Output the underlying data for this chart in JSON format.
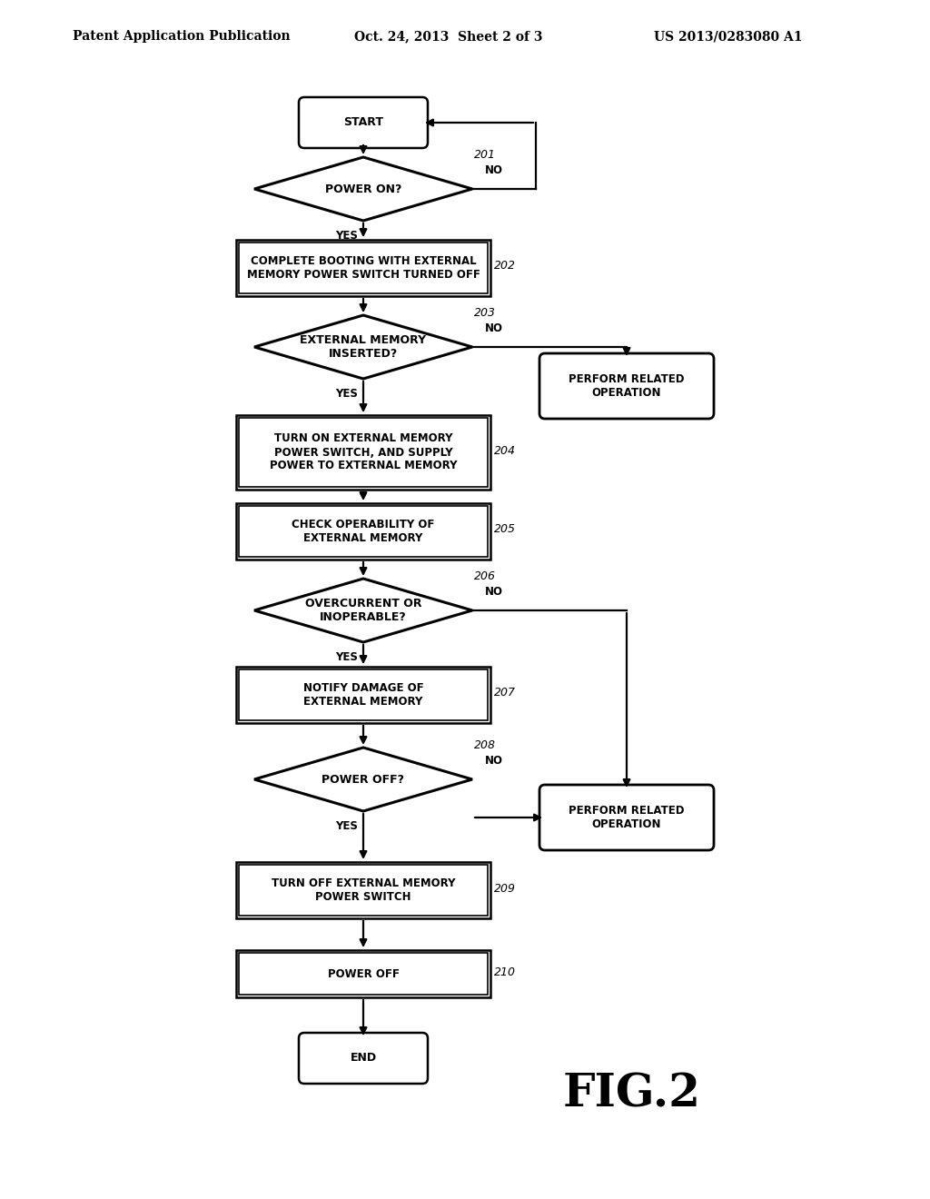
{
  "header_left": "Patent Application Publication",
  "header_mid": "Oct. 24, 2013  Sheet 2 of 3",
  "header_right": "US 2013/0283080 A1",
  "fig_label": "FIG.2",
  "bg_color": "#ffffff",
  "line_color": "#000000",
  "nodes": {
    "START": {
      "label": "START"
    },
    "N201": {
      "label": "POWER ON?",
      "ref": "201"
    },
    "N202": {
      "label": "COMPLETE BOOTING WITH EXTERNAL\nMEMORY POWER SWITCH TURNED OFF",
      "ref": "202"
    },
    "N203": {
      "label": "EXTERNAL MEMORY\nINSERTED?",
      "ref": "203"
    },
    "NPER1": {
      "label": "PERFORM RELATED\nOPERATION"
    },
    "N204": {
      "label": "TURN ON EXTERNAL MEMORY\nPOWER SWITCH, AND SUPPLY\nPOWER TO EXTERNAL MEMORY",
      "ref": "204"
    },
    "N205": {
      "label": "CHECK OPERABILITY OF\nEXTERNAL MEMORY",
      "ref": "205"
    },
    "N206": {
      "label": "OVERCURRENT OR\nINOPERABLE?",
      "ref": "206"
    },
    "N207": {
      "label": "NOTIFY DAMAGE OF\nEXTERNAL MEMORY",
      "ref": "207"
    },
    "N208": {
      "label": "POWER OFF?",
      "ref": "208"
    },
    "NPER2": {
      "label": "PERFORM RELATED\nOPERATION"
    },
    "N209": {
      "label": "TURN OFF EXTERNAL MEMORY\nPOWER SWITCH",
      "ref": "209"
    },
    "N210": {
      "label": "POWER OFF",
      "ref": "210"
    },
    "END": {
      "label": "END"
    }
  }
}
